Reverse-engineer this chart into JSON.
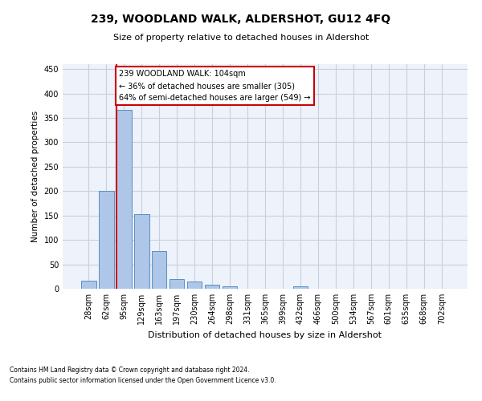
{
  "title": "239, WOODLAND WALK, ALDERSHOT, GU12 4FQ",
  "subtitle": "Size of property relative to detached houses in Aldershot",
  "xlabel": "Distribution of detached houses by size in Aldershot",
  "ylabel": "Number of detached properties",
  "bin_labels": [
    "28sqm",
    "62sqm",
    "95sqm",
    "129sqm",
    "163sqm",
    "197sqm",
    "230sqm",
    "264sqm",
    "298sqm",
    "331sqm",
    "365sqm",
    "399sqm",
    "432sqm",
    "466sqm",
    "500sqm",
    "534sqm",
    "567sqm",
    "601sqm",
    "635sqm",
    "668sqm",
    "702sqm"
  ],
  "bar_heights": [
    17,
    201,
    366,
    153,
    78,
    20,
    14,
    8,
    5,
    0,
    0,
    0,
    5,
    0,
    0,
    0,
    0,
    0,
    0,
    0,
    0
  ],
  "bar_color": "#aec6e8",
  "bar_edge_color": "#5a8fc2",
  "grid_color": "#c8d0e0",
  "background_color": "#eef2fa",
  "annotation_box_color": "#cc0000",
  "property_line_color": "#cc0000",
  "property_bin_index": 2,
  "annotation_line1": "239 WOODLAND WALK: 104sqm",
  "annotation_line2": "← 36% of detached houses are smaller (305)",
  "annotation_line3": "64% of semi-detached houses are larger (549) →",
  "footer_text": "Contains HM Land Registry data © Crown copyright and database right 2024.\nContains public sector information licensed under the Open Government Licence v3.0.",
  "ylim": [
    0,
    460
  ],
  "yticks": [
    0,
    50,
    100,
    150,
    200,
    250,
    300,
    350,
    400,
    450
  ]
}
